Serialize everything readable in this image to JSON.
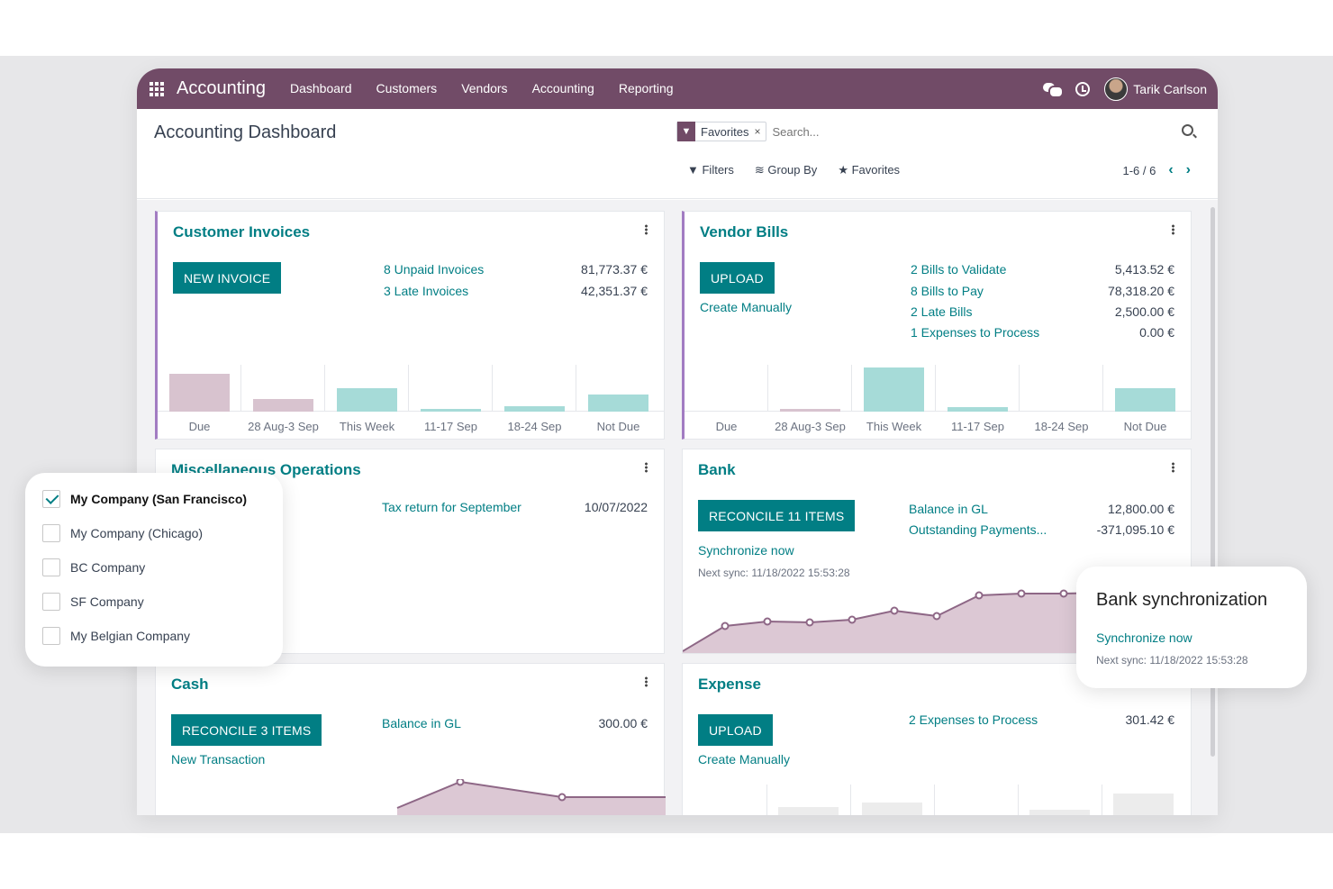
{
  "navbar": {
    "app_name": "Accounting",
    "menu": [
      "Dashboard",
      "Customers",
      "Vendors",
      "Accounting",
      "Reporting"
    ],
    "user_name": "Tarik Carlson"
  },
  "control_panel": {
    "title": "Accounting Dashboard",
    "facet_label": "Favorites",
    "facet_remove": "×",
    "search_placeholder": "Search...",
    "filters_label": "Filters",
    "groupby_label": "Group By",
    "favorites_label": "Favorites",
    "pager": "1-6 / 6"
  },
  "customer_invoices": {
    "title": "Customer Invoices",
    "button": "NEW INVOICE",
    "rows": [
      {
        "label": "8 Unpaid Invoices",
        "amount": "81,773.37 €"
      },
      {
        "label": "3 Late Invoices",
        "amount": "42,351.37 €"
      }
    ],
    "chart_labels": [
      "Due",
      "28 Aug-3 Sep",
      "This Week",
      "11-17 Sep",
      "18-24 Sep",
      "Not Due"
    ]
  },
  "vendor_bills": {
    "title": "Vendor Bills",
    "button": "UPLOAD",
    "secondary": "Create Manually",
    "rows": [
      {
        "label": "2 Bills to Validate",
        "amount": "5,413.52 €"
      },
      {
        "label": "8 Bills to Pay",
        "amount": "78,318.20 €"
      },
      {
        "label": "2 Late Bills",
        "amount": "2,500.00 €"
      },
      {
        "label": "1 Expenses to Process",
        "amount": "0.00 €"
      }
    ],
    "chart_labels": [
      "Due",
      "28 Aug-3 Sep",
      "This Week",
      "11-17 Sep",
      "18-24 Sep",
      "Not Due"
    ]
  },
  "misc_operations": {
    "title": "Miscellaneous Operations",
    "row_label": "Tax return for September",
    "row_date": "10/07/2022"
  },
  "bank": {
    "title": "Bank",
    "button": "RECONCILE 11 ITEMS",
    "sync_link": "Synchronize now",
    "next_sync": "Next sync: 11/18/2022 15:53:28",
    "rows": [
      {
        "label": "Balance in GL",
        "amount": "12,800.00 €"
      },
      {
        "label": "Outstanding Payments...",
        "amount": "-371,095.10 €"
      }
    ]
  },
  "cash": {
    "title": "Cash",
    "button": "RECONCILE 3 ITEMS",
    "secondary": "New Transaction",
    "row_label": "Balance in GL",
    "row_amount": "300.00 €"
  },
  "expense": {
    "title": "Expense",
    "button": "UPLOAD",
    "secondary": "Create Manually",
    "row_label": "2 Expenses to Process",
    "row_amount": "301.42 €"
  },
  "company_popup": {
    "companies": [
      {
        "name": "My Company (San Francisco)",
        "checked": true
      },
      {
        "name": "My Company (Chicago)",
        "checked": false
      },
      {
        "name": "BC Company",
        "checked": false
      },
      {
        "name": "SF Company",
        "checked": false
      },
      {
        "name": "My Belgian Company",
        "checked": false
      }
    ]
  },
  "bank_sync_popup": {
    "title": "Bank synchronization",
    "link": "Synchronize now",
    "next_sync": "Next sync: 11/18/2022 15:53:28"
  },
  "colors": {
    "navbar": "#714b67",
    "primary": "#017e84",
    "bar_past": "#d8c3cf",
    "bar_current": "#a6dbd8",
    "area_fill": "#dcc8d4",
    "line": "#8e6786"
  }
}
